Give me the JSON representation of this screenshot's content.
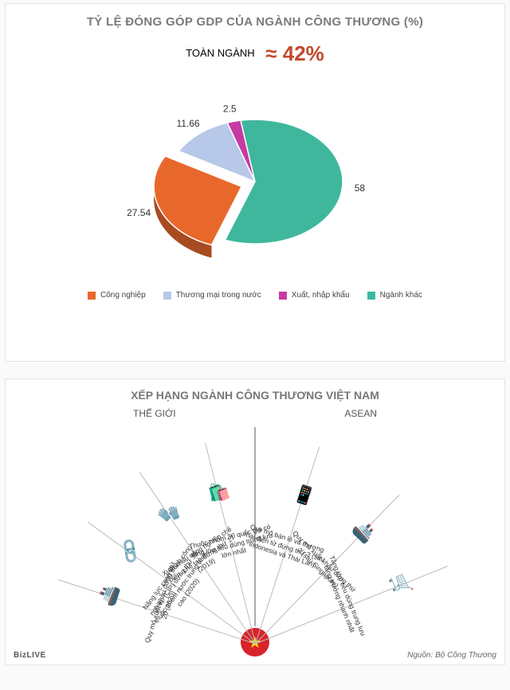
{
  "top": {
    "title": "TỶ LỆ ĐÓNG GÓP GDP CỦA NGÀNH CÔNG THƯƠNG (%)",
    "title_color": "#7a7a7a",
    "subtitle_label": "TOÀN NGÀNH",
    "subtitle_value": "≈ 42%",
    "subtitle_value_color": "#c24a2b",
    "pie": {
      "type": "pie",
      "pulled_out_indices": [
        0
      ],
      "background": "#ffffff",
      "label_fontsize": 12,
      "label_color": "#333333",
      "slices": [
        {
          "label": "Công nghiệp",
          "value": 27.54,
          "value_text": "27.54",
          "color": "#e8682c"
        },
        {
          "label": "Thương mại trong nước",
          "value": 11.66,
          "value_text": "11.66",
          "color": "#b8c8e8"
        },
        {
          "label": "Xuất, nhập khẩu",
          "value": 2.5,
          "value_text": "2.5",
          "color": "#c63aa4"
        },
        {
          "label": "Ngành khác",
          "value": 58,
          "value_text": "58",
          "color": "#3fb79d"
        }
      ]
    }
  },
  "bottom": {
    "title": "XẾP HẠNG NGÀNH CÔNG THƯƠNG VIỆT NAM",
    "title_color": "#777777",
    "left_label": "THẾ GIỚI",
    "right_label": "ASEAN",
    "line_color": "#bbbbbb",
    "star_bg": "#d8232a",
    "star_fg": "#ffde00",
    "rays": [
      {
        "angle_deg": -72,
        "icon": "🚢",
        "text": "Quy mô xuất khẩu đứng thứ 20 (2020)"
      },
      {
        "angle_deg": -54,
        "icon": "🔗",
        "text": "Năng lực cạnh tranh công nghiệp (CIP) đứng thứ 36, thuộc nhóm nước trung bình cao (2020)"
      },
      {
        "angle_deg": -34,
        "icon": "🧤",
        "text": "Xuất khẩu công nghiệp chế biến, chế tạo đứng thứ 17 (2019)"
      },
      {
        "angle_deg": -14,
        "icon": "🛍️",
        "text": "Thuộc nhóm 30 quốc gia có tầng lớp tiêu dùng trung lưu lớn nhất"
      },
      {
        "angle_deg": 18,
        "icon": "📱",
        "text": "Quy mô bán lẻ và thương mại điện tử đứng thứ 3 (sau Indonesia và Thái Lan)"
      },
      {
        "angle_deg": 44,
        "icon": "🚢",
        "text": "Quy mô xuất khẩu đứng thứ 2 (sau Singapore)"
      },
      {
        "angle_deg": 68,
        "icon": "🛒",
        "text": "Tầng lớp tiêu dùng trung lưu tăng trưởng nhanh nhất"
      }
    ],
    "footer": "Nguồn: Bộ Công Thương",
    "logo": "BizLIVE"
  }
}
